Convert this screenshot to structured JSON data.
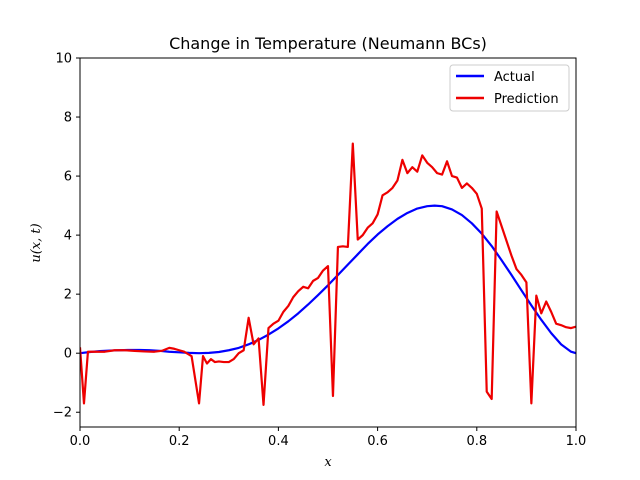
{
  "chart_data": {
    "type": "line",
    "title": "Change in Temperature (Neumann BCs)",
    "xlabel": "x",
    "ylabel": "u(x, t)",
    "xlim": [
      0,
      1
    ],
    "ylim": [
      -2.5,
      10
    ],
    "xticks": [
      "0.0",
      "0.2",
      "0.4",
      "0.6",
      "0.8",
      "1.0"
    ],
    "yticks": [
      "−2",
      "0",
      "2",
      "4",
      "6",
      "8",
      "10"
    ],
    "grid": false,
    "legend_position": "top-right",
    "series": [
      {
        "name": "Actual",
        "color": "#0000ff",
        "x": [
          0,
          0.02,
          0.04,
          0.06,
          0.08,
          0.1,
          0.12,
          0.14,
          0.16,
          0.18,
          0.2,
          0.22,
          0.24,
          0.26,
          0.28,
          0.3,
          0.32,
          0.34,
          0.36,
          0.38,
          0.4,
          0.42,
          0.44,
          0.46,
          0.48,
          0.5,
          0.52,
          0.54,
          0.56,
          0.58,
          0.6,
          0.62,
          0.64,
          0.66,
          0.68,
          0.7,
          0.715,
          0.73,
          0.75,
          0.77,
          0.79,
          0.81,
          0.83,
          0.85,
          0.87,
          0.89,
          0.91,
          0.93,
          0.95,
          0.97,
          0.99,
          1.0
        ],
        "y": [
          0,
          0.04,
          0.07,
          0.09,
          0.1,
          0.11,
          0.11,
          0.1,
          0.08,
          0.05,
          0.03,
          0.01,
          0,
          0.01,
          0.04,
          0.1,
          0.18,
          0.3,
          0.45,
          0.63,
          0.84,
          1.08,
          1.35,
          1.65,
          1.97,
          2.3,
          2.65,
          3.0,
          3.35,
          3.7,
          4.02,
          4.3,
          4.55,
          4.75,
          4.9,
          4.98,
          5.0,
          4.98,
          4.87,
          4.68,
          4.4,
          4.05,
          3.63,
          3.15,
          2.65,
          2.13,
          1.62,
          1.13,
          0.68,
          0.3,
          0.05,
          0
        ]
      },
      {
        "name": "Prediction",
        "color": "#ee0000",
        "x": [
          0,
          0.008,
          0.016,
          0.03,
          0.05,
          0.07,
          0.09,
          0.11,
          0.13,
          0.15,
          0.165,
          0.18,
          0.19,
          0.2,
          0.21,
          0.225,
          0.24,
          0.248,
          0.256,
          0.264,
          0.272,
          0.28,
          0.29,
          0.3,
          0.31,
          0.32,
          0.33,
          0.34,
          0.35,
          0.36,
          0.37,
          0.38,
          0.39,
          0.4,
          0.41,
          0.42,
          0.43,
          0.44,
          0.45,
          0.46,
          0.47,
          0.48,
          0.49,
          0.5,
          0.51,
          0.52,
          0.53,
          0.54,
          0.55,
          0.56,
          0.57,
          0.58,
          0.59,
          0.6,
          0.61,
          0.62,
          0.63,
          0.64,
          0.65,
          0.66,
          0.67,
          0.68,
          0.69,
          0.7,
          0.71,
          0.72,
          0.73,
          0.74,
          0.75,
          0.76,
          0.77,
          0.78,
          0.79,
          0.8,
          0.81,
          0.82,
          0.83,
          0.84,
          0.85,
          0.86,
          0.87,
          0.88,
          0.89,
          0.9,
          0.91,
          0.92,
          0.93,
          0.94,
          0.95,
          0.96,
          0.97,
          0.98,
          0.99,
          1.0
        ],
        "y": [
          0.2,
          -1.7,
          0.05,
          0.05,
          0.05,
          0.1,
          0.1,
          0.08,
          0.06,
          0.05,
          0.08,
          0.18,
          0.15,
          0.1,
          0.05,
          -0.1,
          -1.7,
          -0.1,
          -0.35,
          -0.2,
          -0.3,
          -0.28,
          -0.3,
          -0.3,
          -0.2,
          0.0,
          0.1,
          1.2,
          0.3,
          0.5,
          -1.75,
          0.85,
          1.0,
          1.1,
          1.4,
          1.6,
          1.9,
          2.1,
          2.25,
          2.2,
          2.45,
          2.55,
          2.8,
          2.95,
          -1.45,
          3.6,
          3.62,
          3.6,
          7.1,
          3.85,
          4.0,
          4.25,
          4.4,
          4.7,
          5.35,
          5.45,
          5.6,
          5.85,
          6.55,
          6.1,
          6.3,
          6.15,
          6.7,
          6.45,
          6.3,
          6.1,
          6.05,
          6.5,
          6.0,
          5.95,
          5.6,
          5.75,
          5.6,
          5.4,
          4.9,
          -1.3,
          -1.55,
          4.8,
          4.3,
          3.8,
          3.3,
          2.85,
          2.65,
          2.4,
          -1.7,
          1.95,
          1.35,
          1.75,
          1.4,
          1.0,
          0.95,
          0.88,
          0.85,
          0.9
        ]
      }
    ]
  }
}
